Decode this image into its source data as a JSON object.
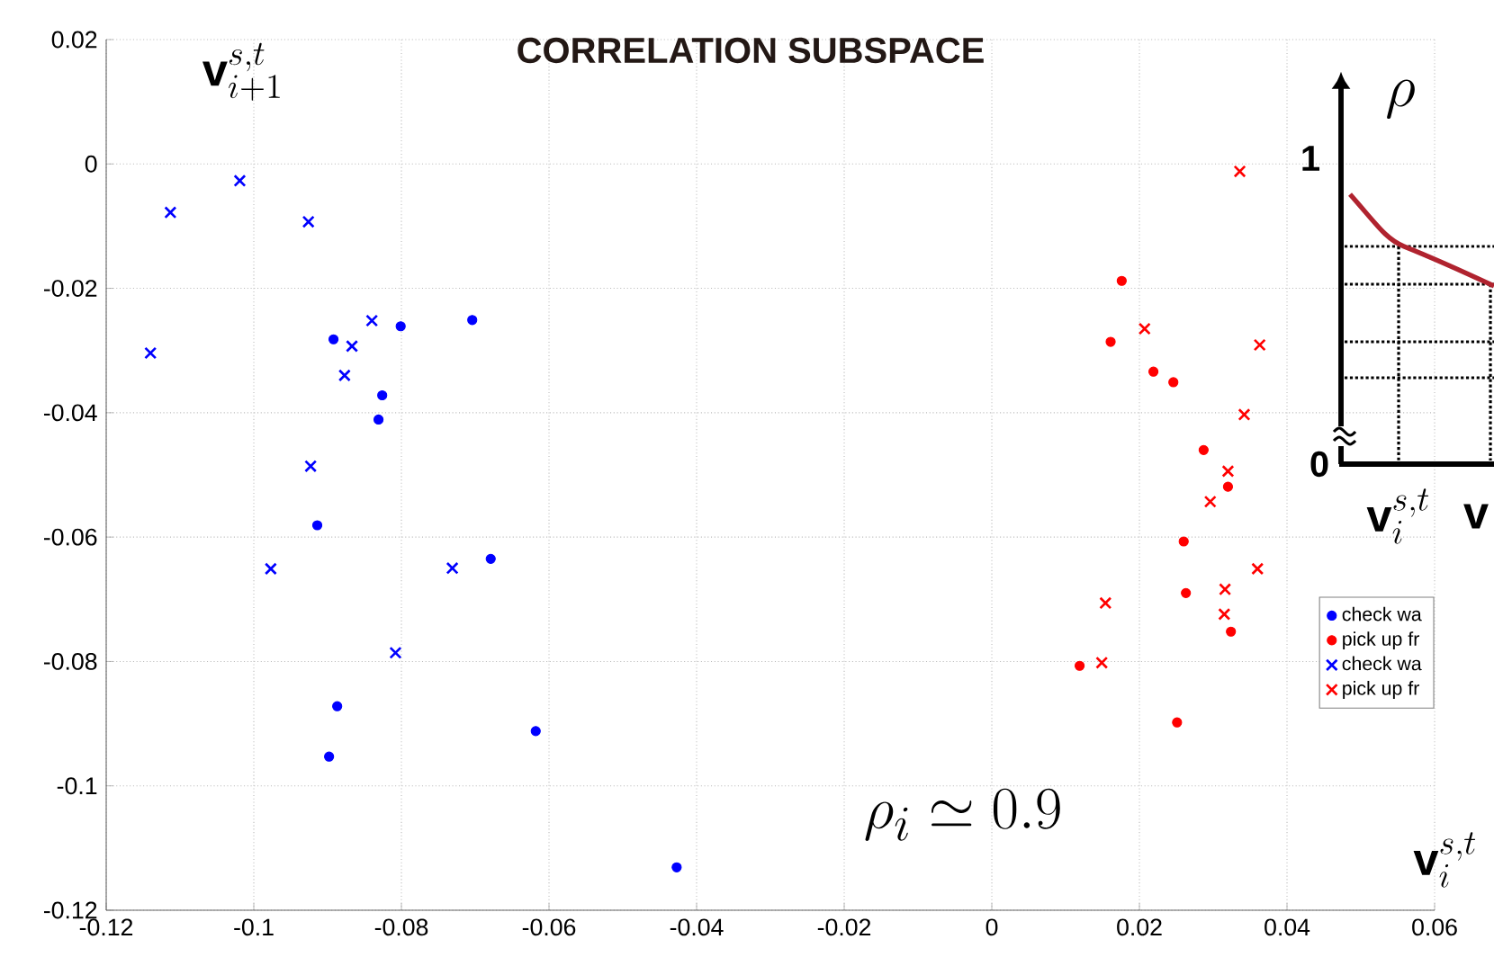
{
  "chart_data": {
    "type": "scatter",
    "title": "CORRELATION SUBSPACE",
    "xlabel": "\\mathbf{v}_{i}^{s,t}",
    "ylabel": "\\mathbf{v}_{i+1}^{s,t}",
    "annotations": [
      "\\rho_i \\simeq 0.9",
      "\\rho",
      "\\mathbf{1}",
      "\\mathbf{0}",
      "\\mathbf{v}_{i}^{s,t}",
      "\\mathbf{v}"
    ],
    "xlim": [
      -0.12,
      0.06
    ],
    "ylim": [
      -0.12,
      0.02
    ],
    "xticks": [
      -0.12,
      -0.1,
      -0.08,
      -0.06,
      -0.04,
      -0.02,
      0,
      0.02,
      0.04,
      0.06
    ],
    "yticks": [
      -0.12,
      -0.1,
      -0.08,
      -0.06,
      -0.04,
      -0.02,
      0,
      0.02
    ],
    "grid": true,
    "legend": "right",
    "series": [
      {
        "name": "check wa",
        "color": "#0000ff",
        "marker": "circle",
        "x": [
          -0.0892,
          -0.0801,
          -0.0704,
          -0.0826,
          -0.0831,
          -0.0914,
          -0.0679,
          -0.0887,
          -0.0898,
          -0.0618,
          -0.0427
        ],
        "values": [
          -0.0282,
          -0.0261,
          -0.0251,
          -0.0372,
          -0.0411,
          -0.0581,
          -0.0635,
          -0.0872,
          -0.0953,
          -0.0912,
          -0.1131
        ]
      },
      {
        "name": "pick up fr",
        "color": "#ff0000",
        "marker": "circle",
        "x": [
          0.0176,
          0.0161,
          0.0219,
          0.0246,
          0.0287,
          0.032,
          0.026,
          0.0263,
          0.0324,
          0.0119,
          0.0251
        ],
        "values": [
          -0.0188,
          -0.0286,
          -0.0334,
          -0.0351,
          -0.046,
          -0.0519,
          -0.0607,
          -0.069,
          -0.0752,
          -0.0807,
          -0.0898
        ]
      },
      {
        "name": "check wa",
        "color": "#0000ff",
        "marker": "cross",
        "x": [
          -0.1019,
          -0.1113,
          -0.0926,
          -0.114,
          -0.084,
          -0.0867,
          -0.0877,
          -0.0923,
          -0.0977,
          -0.0731,
          -0.0808
        ],
        "values": [
          -0.0027,
          -0.0078,
          -0.0093,
          -0.0304,
          -0.0252,
          -0.0293,
          -0.034,
          -0.0486,
          -0.0651,
          -0.065,
          -0.0786
        ]
      },
      {
        "name": "pick up fr",
        "color": "#ff0000",
        "marker": "cross",
        "x": [
          0.0336,
          0.0207,
          0.0363,
          0.0342,
          0.032,
          0.0296,
          0.036,
          0.0154,
          0.0316,
          0.0315,
          0.0149
        ],
        "values": [
          -0.0012,
          -0.0265,
          -0.0291,
          -0.0403,
          -0.0494,
          -0.0543,
          -0.0651,
          -0.0706,
          -0.0684,
          -0.0724,
          -0.0802
        ]
      }
    ]
  }
}
